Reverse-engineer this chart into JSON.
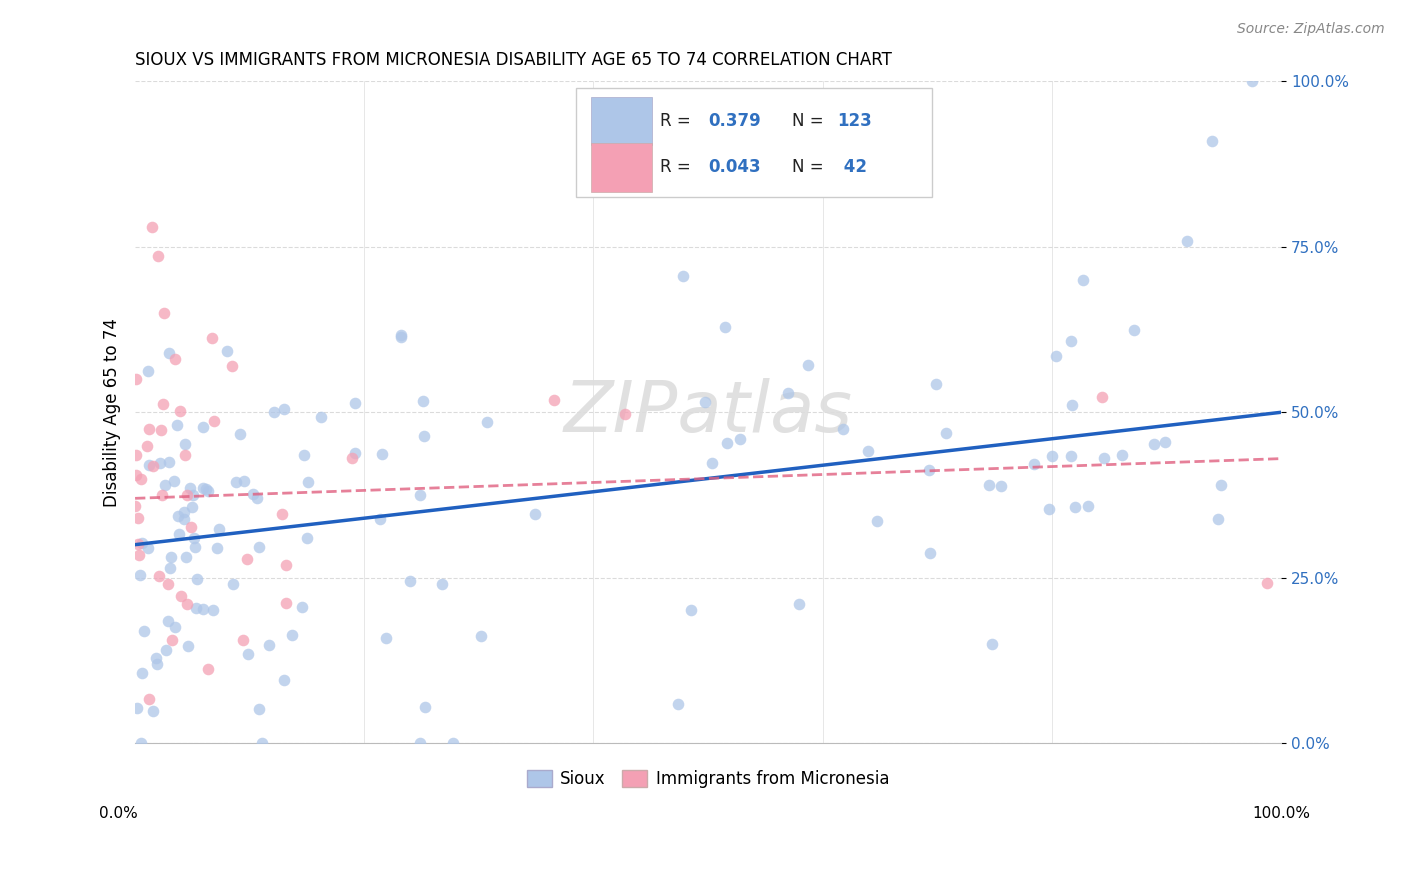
{
  "title": "SIOUX VS IMMIGRANTS FROM MICRONESIA DISABILITY AGE 65 TO 74 CORRELATION CHART",
  "source": "Source: ZipAtlas.com",
  "ylabel": "Disability Age 65 to 74",
  "legend_label1": "Sioux",
  "legend_label2": "Immigrants from Micronesia",
  "r1": 0.379,
  "n1": 123,
  "r2": 0.043,
  "n2": 42,
  "color1": "#aec6e8",
  "color2": "#f4a0b4",
  "line1_color": "#2060c0",
  "line2_color": "#e06080",
  "background_color": "#ffffff",
  "grid_color": "#cccccc",
  "xmin": 0.0,
  "xmax": 100.0,
  "ymin": 0.0,
  "ymax": 100.0,
  "yticks": [
    0.0,
    25.0,
    50.0,
    75.0,
    100.0
  ],
  "ytick_labels": [
    "0.0%",
    "25.0%",
    "50.0%",
    "75.0%",
    "100.0%"
  ],
  "line1_x0": 0.0,
  "line1_y0": 30.0,
  "line1_x1": 100.0,
  "line1_y1": 50.0,
  "line2_x0": 0.0,
  "line2_y0": 37.0,
  "line2_x1": 100.0,
  "line2_y1": 43.0,
  "watermark_text": "ZIPatlas",
  "title_fontsize": 12,
  "tick_fontsize": 11,
  "source_fontsize": 10
}
